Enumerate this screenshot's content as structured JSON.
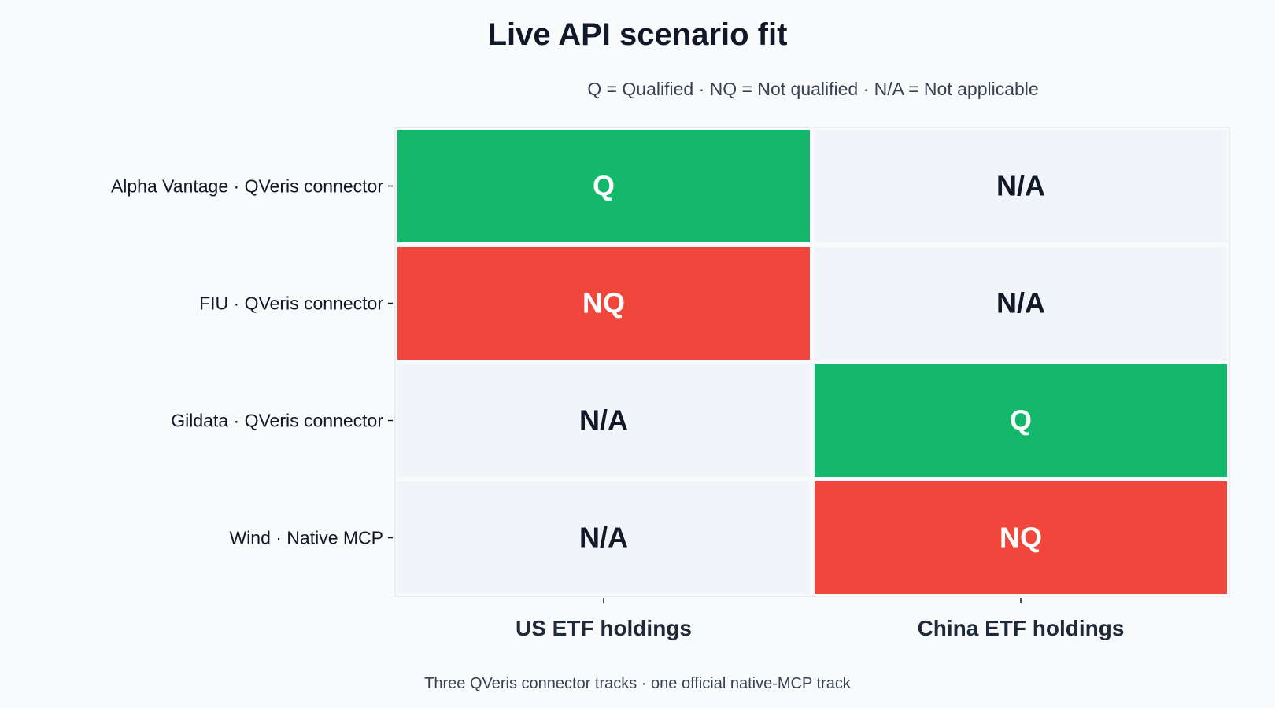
{
  "chart_data": {
    "type": "heatmap",
    "title": "Live API scenario fit",
    "subtitle": "Q = Qualified · NQ = Not qualified · N/A = Not applicable",
    "footer": "Three QVeris connector tracks · one official native-MCP track",
    "columns": [
      "US ETF holdings",
      "China ETF holdings"
    ],
    "rows": [
      "Alpha Vantage · QVeris connector",
      "FIU · QVeris connector",
      "Gildata · QVeris connector",
      "Wind · Native MCP"
    ],
    "cells": [
      [
        "Q",
        "N/A"
      ],
      [
        "NQ",
        "N/A"
      ],
      [
        "N/A",
        "Q"
      ],
      [
        "N/A",
        "NQ"
      ]
    ],
    "colors": {
      "Q": "#13b86a",
      "NQ": "#f0463b",
      "N/A": "#f1f5f9",
      "text_light": "#ffffff",
      "text_dark": "#111827"
    }
  }
}
